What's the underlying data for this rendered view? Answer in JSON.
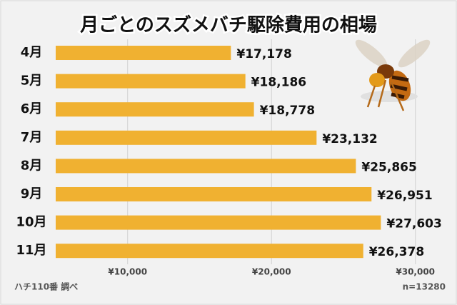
{
  "chart_data": {
    "type": "bar",
    "orientation": "horizontal",
    "title": "月ごとのスズメバチ駆除費用の相場",
    "categories": [
      "4月",
      "5月",
      "6月",
      "7月",
      "8月",
      "9月",
      "10月",
      "11月"
    ],
    "values": [
      17178,
      18186,
      18778,
      23132,
      25865,
      26951,
      27603,
      26378
    ],
    "value_labels": [
      "¥17,178",
      "¥18,186",
      "¥18,778",
      "¥23,132",
      "¥25,865",
      "¥26,951",
      "¥27,603",
      "¥26,378"
    ],
    "color": "#f0b131",
    "xlim": [
      5000,
      32000
    ],
    "xticks": [
      {
        "value": 10000,
        "label": "¥10,000"
      },
      {
        "value": 20000,
        "label": "¥20,000"
      },
      {
        "value": 30000,
        "label": "¥30,000"
      }
    ],
    "grid": true,
    "source": "ハチ110番 調べ",
    "sample_size": "n=13280"
  }
}
